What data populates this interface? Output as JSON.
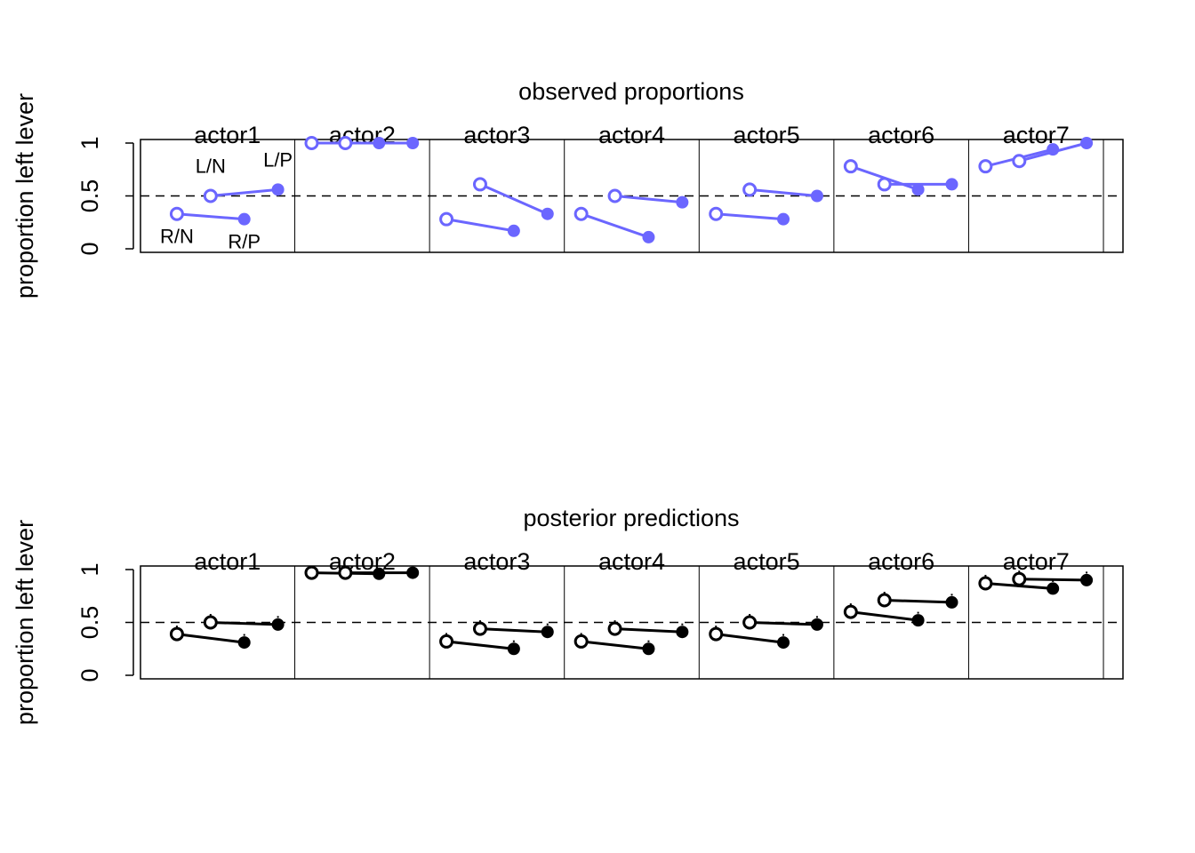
{
  "colors": {
    "observed": "#6b66ff",
    "predicted": "#000000",
    "reference": "#000000"
  },
  "chart_data": [
    {
      "type": "line",
      "title": "observed proportions",
      "ylabel": "proportion left lever",
      "xlabel": "",
      "ylim": [
        0,
        1
      ],
      "xlim": [
        1,
        28
      ],
      "yticks": [
        "0",
        "0.5",
        "1"
      ],
      "reference_line": 0.5,
      "treatments": [
        "R/N",
        "L/N",
        "R/P",
        "L/P"
      ],
      "actors": [
        {
          "label": "actor1",
          "values": [
            0.33,
            0.5,
            0.28,
            0.56
          ]
        },
        {
          "label": "actor2",
          "values": [
            1.0,
            1.0,
            1.0,
            1.0
          ]
        },
        {
          "label": "actor3",
          "values": [
            0.28,
            0.61,
            0.17,
            0.33
          ]
        },
        {
          "label": "actor4",
          "values": [
            0.33,
            0.5,
            0.11,
            0.44
          ]
        },
        {
          "label": "actor5",
          "values": [
            0.33,
            0.56,
            0.28,
            0.5
          ]
        },
        {
          "label": "actor6",
          "values": [
            0.78,
            0.61,
            0.56,
            0.61
          ]
        },
        {
          "label": "actor7",
          "values": [
            0.78,
            0.83,
            0.94,
            1.0
          ]
        }
      ]
    },
    {
      "type": "line",
      "title": "posterior predictions",
      "ylabel": "proportion left lever",
      "xlabel": "",
      "ylim": [
        0,
        1
      ],
      "xlim": [
        1,
        28
      ],
      "yticks": [
        "0",
        "0.5",
        "1"
      ],
      "reference_line": 0.5,
      "ci_halfwidth": 0.08,
      "actors": [
        {
          "label": "actor1",
          "values": [
            0.39,
            0.5,
            0.31,
            0.48
          ]
        },
        {
          "label": "actor2",
          "values": [
            0.97,
            0.97,
            0.96,
            0.97
          ]
        },
        {
          "label": "actor3",
          "values": [
            0.32,
            0.44,
            0.25,
            0.41
          ]
        },
        {
          "label": "actor4",
          "values": [
            0.32,
            0.44,
            0.25,
            0.41
          ]
        },
        {
          "label": "actor5",
          "values": [
            0.39,
            0.5,
            0.31,
            0.48
          ]
        },
        {
          "label": "actor6",
          "values": [
            0.6,
            0.71,
            0.52,
            0.69
          ]
        },
        {
          "label": "actor7",
          "values": [
            0.87,
            0.91,
            0.82,
            0.9
          ]
        }
      ]
    }
  ]
}
